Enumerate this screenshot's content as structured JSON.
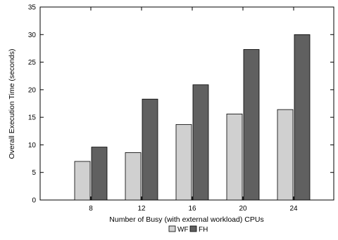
{
  "chart_data": {
    "type": "bar",
    "title": "",
    "xlabel": "Number of Busy (with external workload) CPUs",
    "ylabel": "Overall Execution Time (seconds)",
    "categories": [
      "8",
      "12",
      "16",
      "20",
      "24"
    ],
    "ylim": [
      0,
      35
    ],
    "yticks": [
      0,
      5,
      10,
      15,
      20,
      25,
      30,
      35
    ],
    "grid": false,
    "legend_position": "bottom-center",
    "series": [
      {
        "name": "WF",
        "values": [
          7.0,
          8.6,
          13.7,
          15.6,
          16.4
        ],
        "color": "#d0d0d0"
      },
      {
        "name": "FH",
        "values": [
          9.6,
          18.3,
          20.9,
          27.3,
          30.0
        ],
        "color": "#606060"
      }
    ]
  }
}
